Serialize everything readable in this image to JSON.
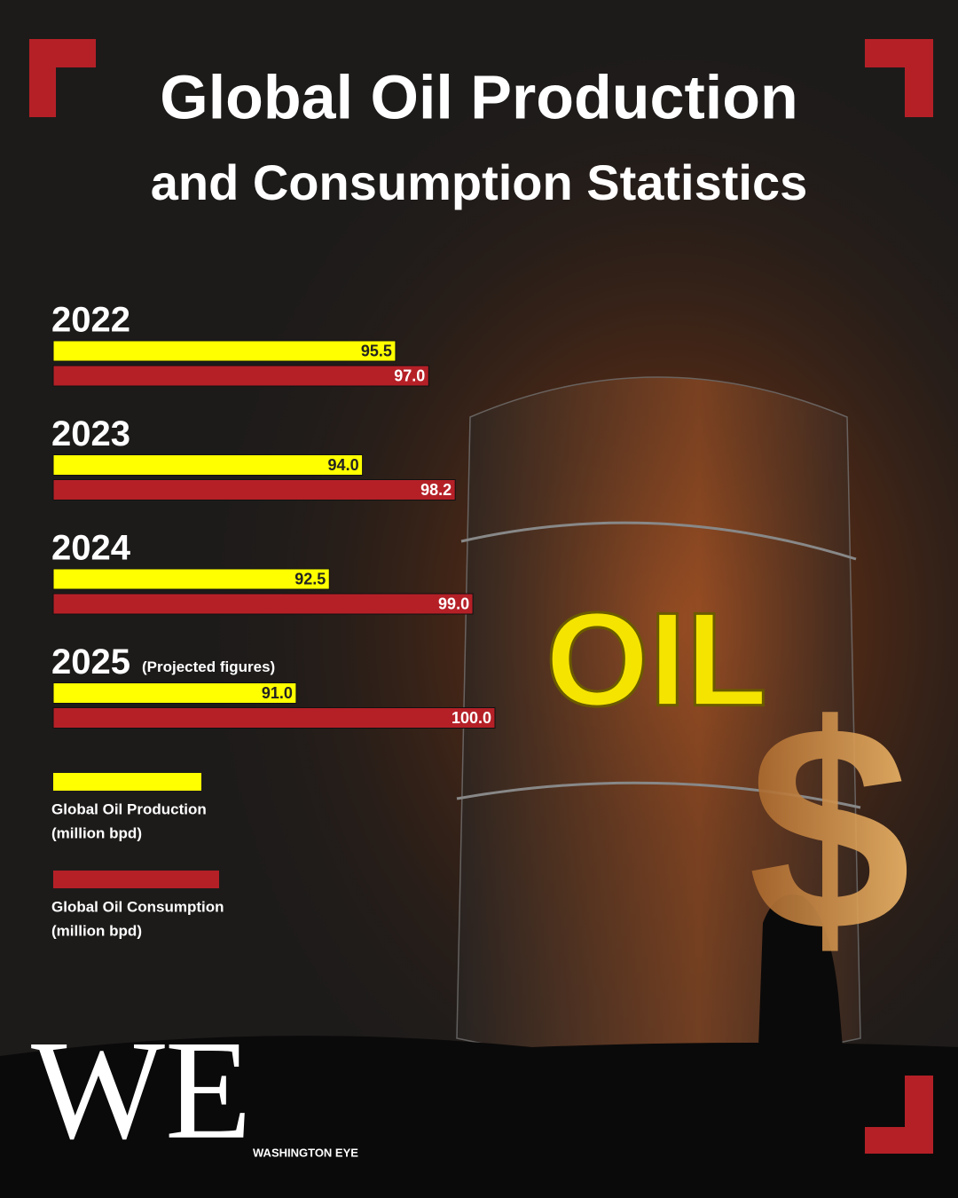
{
  "chart_data": {
    "type": "hbar",
    "title": "Global Oil Production",
    "subtitle": "and Consumption Statistics",
    "categories": [
      "2022",
      "2023",
      "2024",
      "2025"
    ],
    "category_notes": [
      null,
      null,
      null,
      "(Projected figures)"
    ],
    "series": [
      {
        "name": "Global Oil Production",
        "unit": "(million bpd)",
        "color": "#ffff00",
        "values": [
          95.5,
          94.0,
          92.5,
          91.0
        ],
        "value_labels": [
          "95.5",
          "94.0",
          "92.5",
          "91.0"
        ]
      },
      {
        "name": "Global Oil Consumption",
        "unit": "(million bpd)",
        "color": "#b52027",
        "values": [
          97.0,
          98.2,
          99.0,
          100.0
        ],
        "value_labels": [
          "97.0",
          "98.2",
          "99.0",
          "100.0"
        ]
      }
    ],
    "xlim": [
      80,
      100
    ],
    "illustration_text": "OIL",
    "illustration_symbol": "$",
    "logo": "WE",
    "brand": "WASHINGTON EYE"
  }
}
